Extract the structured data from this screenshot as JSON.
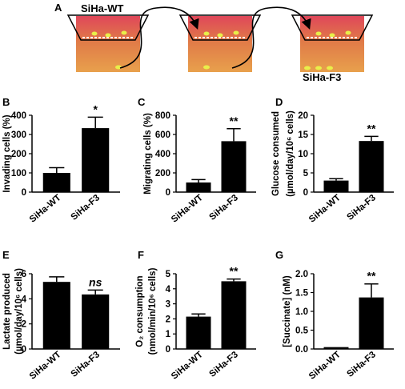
{
  "schematic": {
    "panel_letter": "A",
    "label_start": "SiHa-WT",
    "label_end": "SiHa-F3"
  },
  "colors": {
    "bar": "#000000",
    "chamber_top": "#e0475a",
    "chamber_mid": "#e07a48",
    "chamber_bottom": "#e8a04c",
    "cell": "#e9ef4a",
    "membrane": "#ffffff"
  },
  "chart_data": [
    {
      "type": "bar",
      "panel": "B",
      "categories": [
        "SiHa-WT",
        "SiHa-F3"
      ],
      "values": [
        100,
        333
      ],
      "errors": [
        27,
        57
      ],
      "significance": [
        "",
        "*"
      ],
      "ylabel": "Invading cells (%)",
      "ylim": [
        0,
        400
      ],
      "yticks": [
        "0",
        "100",
        "200",
        "300",
        "400"
      ]
    },
    {
      "type": "bar",
      "panel": "C",
      "categories": [
        "SiHa-WT",
        "SiHa-F3"
      ],
      "values": [
        100,
        530
      ],
      "errors": [
        30,
        130
      ],
      "significance": [
        "",
        "**"
      ],
      "ylabel": "Migrating cells (%)",
      "ylim": [
        0,
        800
      ],
      "yticks": [
        "0",
        "200",
        "400",
        "600",
        "800"
      ]
    },
    {
      "type": "bar",
      "panel": "D",
      "categories": [
        "SiHa-WT",
        "SiHa-F3"
      ],
      "values": [
        3.0,
        13.3
      ],
      "errors": [
        0.5,
        1.2
      ],
      "significance": [
        "",
        "**"
      ],
      "ylabel": "Glucose consumed",
      "ylabel2": "(µmol/day/10⁶ cells)",
      "ylim": [
        0,
        20
      ],
      "yticks": [
        "0",
        "5",
        "10",
        "15",
        "20"
      ]
    },
    {
      "type": "bar",
      "panel": "E",
      "categories": [
        "SiHa-WT",
        "SiHa-F3"
      ],
      "values": [
        5.35,
        4.35
      ],
      "errors": [
        0.4,
        0.35
      ],
      "significance": [
        "",
        "ns"
      ],
      "ylabel": "Lactate produced",
      "ylabel2": "(µmol/day/10⁶ cells)",
      "ylim": [
        0,
        6
      ],
      "yticks": [
        "0",
        "2",
        "4",
        "6"
      ]
    },
    {
      "type": "bar",
      "panel": "F",
      "categories": [
        "SiHa-WT",
        "SiHa-F3"
      ],
      "values": [
        2.15,
        4.5
      ],
      "errors": [
        0.18,
        0.15
      ],
      "significance": [
        "",
        "**"
      ],
      "ylabel": "O₂ consumption",
      "ylabel2": "(nmol/min/10⁶ cells)",
      "ylim": [
        0,
        5
      ],
      "yticks": [
        "0",
        "1",
        "2",
        "3",
        "4",
        "5"
      ]
    },
    {
      "type": "bar",
      "panel": "G",
      "categories": [
        "SiHa-WT",
        "SiHa-F3"
      ],
      "values": [
        0.05,
        1.37
      ],
      "errors": [
        0.0,
        0.36
      ],
      "significance": [
        "",
        "**"
      ],
      "ylabel": "[Succinate] (nM)",
      "ylim": [
        0,
        2.0
      ],
      "yticks": [
        "0.0",
        "0.5",
        "1.0",
        "1.5",
        "2.0"
      ]
    }
  ]
}
